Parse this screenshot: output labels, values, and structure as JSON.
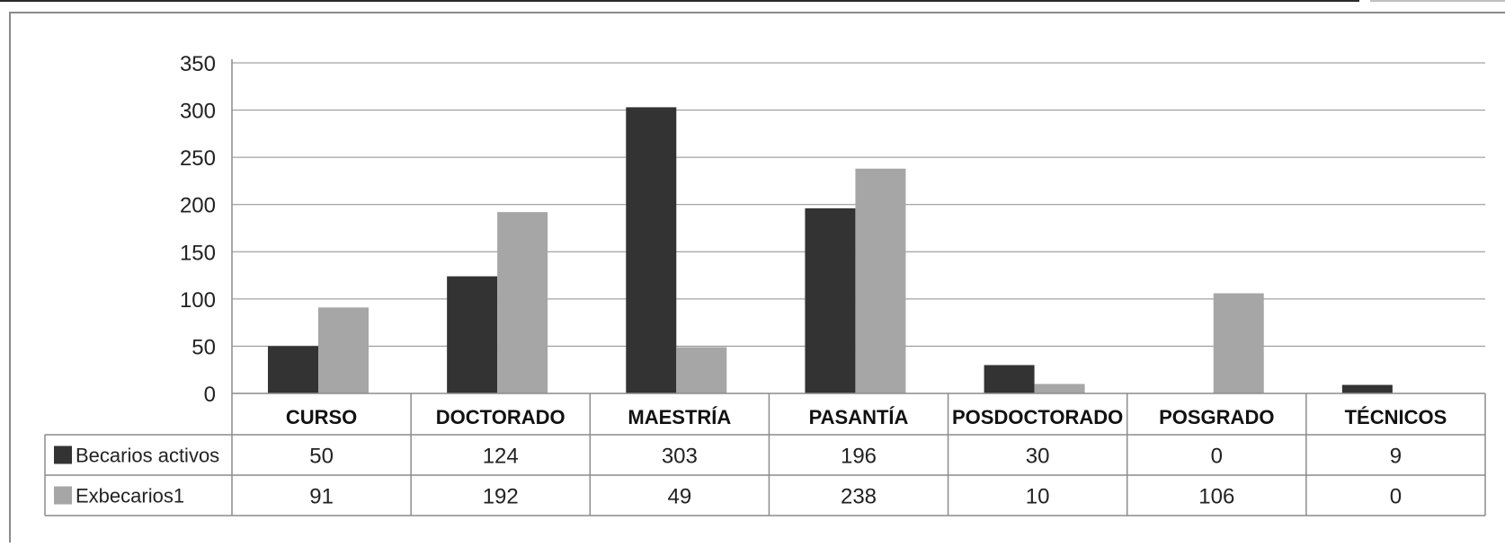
{
  "chart_data": {
    "type": "bar",
    "categories": [
      "CURSO",
      "DOCTORADO",
      "MAESTRÍA",
      "PASANTÍA",
      "POSDOCTORADO",
      "POSGRADO",
      "TÉCNICOS"
    ],
    "series": [
      {
        "name": "Becarios activos",
        "values": [
          50,
          124,
          303,
          196,
          30,
          0,
          9
        ],
        "color": "#333333"
      },
      {
        "name": "Exbecarios1",
        "values": [
          91,
          192,
          49,
          238,
          10,
          106,
          0
        ],
        "color": "#a6a6a6"
      }
    ],
    "ylim": [
      0,
      350
    ],
    "yticks": [
      0,
      50,
      100,
      150,
      200,
      250,
      300,
      350
    ],
    "grid": true,
    "legend": "data-table",
    "title": "",
    "xlabel": "",
    "ylabel": ""
  }
}
